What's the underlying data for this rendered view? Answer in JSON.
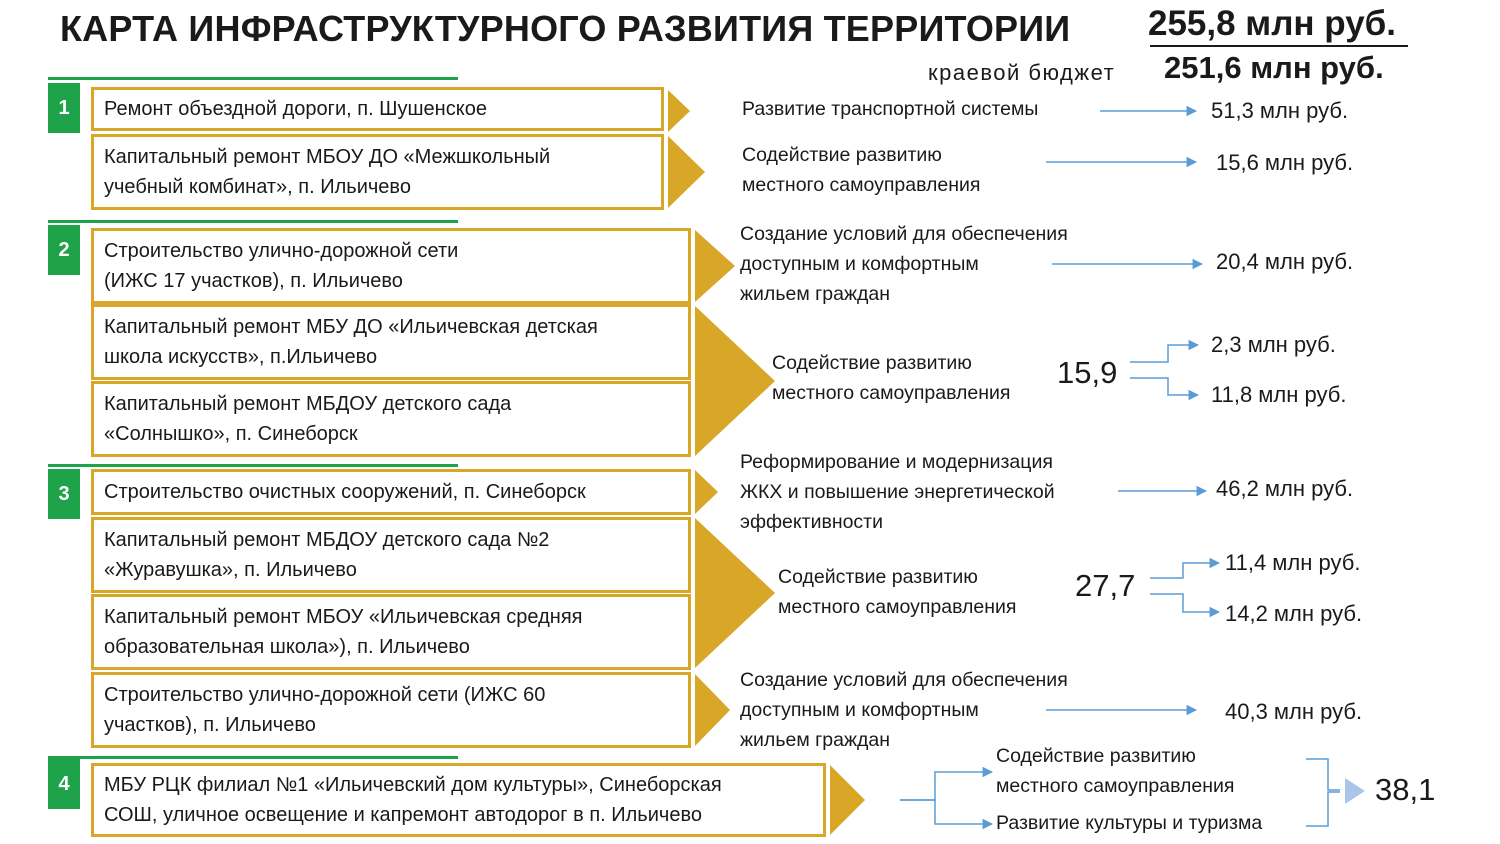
{
  "title": "КАРТА ИНФРАСТРУКТУРНОГО РАЗВИТИЯ ТЕРРИТОРИИ",
  "total": "255,8 млн руб.",
  "regional_budget_label": "краевой бюджет",
  "regional_budget_value": "251,6 млн руб.",
  "colors": {
    "accent_green": "#1ea24a",
    "accent_gold": "#d8a728",
    "arrow_blue": "#5b9bd5"
  },
  "groups": [
    {
      "number": "1",
      "projects": [
        "Ремонт объездной дороги, п. Шушенское",
        "Капитальный ремонт  МБОУ ДО «Межшкольный\nучебный комбинат», п. Ильичево"
      ],
      "programs": [
        {
          "name": "Развитие транспортной системы",
          "amount": "51,3 млн руб."
        },
        {
          "name": "Содействие развитию\nместного самоуправления",
          "amount": "15,6 млн руб."
        }
      ]
    },
    {
      "number": "2",
      "projects": [
        "Строительство улично-дорожной сети\n(ИЖС 17 участков), п. Ильичево",
        "Капитальный ремонт МБУ ДО «Ильичевская детская\nшкола искусств», п.Ильичево",
        "Капитальный ремонт МБДОУ детского сада\n«Солнышко», п. Синеборск"
      ],
      "programs": [
        {
          "name": "Создание условий для обеспечения\nдоступным и комфортным\nжильем граждан",
          "amount": "20,4 млн руб."
        },
        {
          "name": "Содействие развитию\nместного самоуправления",
          "total": "15,9",
          "amounts": [
            "2,3 млн руб.",
            "11,8 млн руб."
          ]
        }
      ]
    },
    {
      "number": "3",
      "projects": [
        "Строительство очистных сооружений, п. Синеборск",
        "Капитальный ремонт МБДОУ детского сада  №2\n«Журавушка», п. Ильичево",
        "Капитальный ремонт МБОУ «Ильичевская средняя\nобразовательная школа»), п. Ильичево",
        "Строительство улично-дорожной сети (ИЖС 60\nучастков), п. Ильичево"
      ],
      "programs": [
        {
          "name": "Реформирование и модернизация\nЖКХ и повышение энергетической\nэффективности",
          "amount": "46,2 млн руб."
        },
        {
          "name": "Содействие развитию\nместного самоуправления",
          "total": "27,7",
          "amounts": [
            "11,4 млн руб.",
            "14,2 млн руб."
          ]
        },
        {
          "name": "Создание условий для обеспечения\nдоступным и комфортным\nжильем граждан",
          "amount": "40,3 млн руб."
        }
      ]
    },
    {
      "number": "4",
      "projects": [
        "МБУ РЦК филиал №1 «Ильичевский дом культуры», Синеборская\nСОШ, уличное освещение и капремонт автодорог в п. Ильичево"
      ],
      "programs": [
        {
          "name": "Содействие развитию\nместного самоуправления"
        },
        {
          "name": "Развитие культуры и туризма"
        }
      ],
      "total": "38,1"
    }
  ]
}
